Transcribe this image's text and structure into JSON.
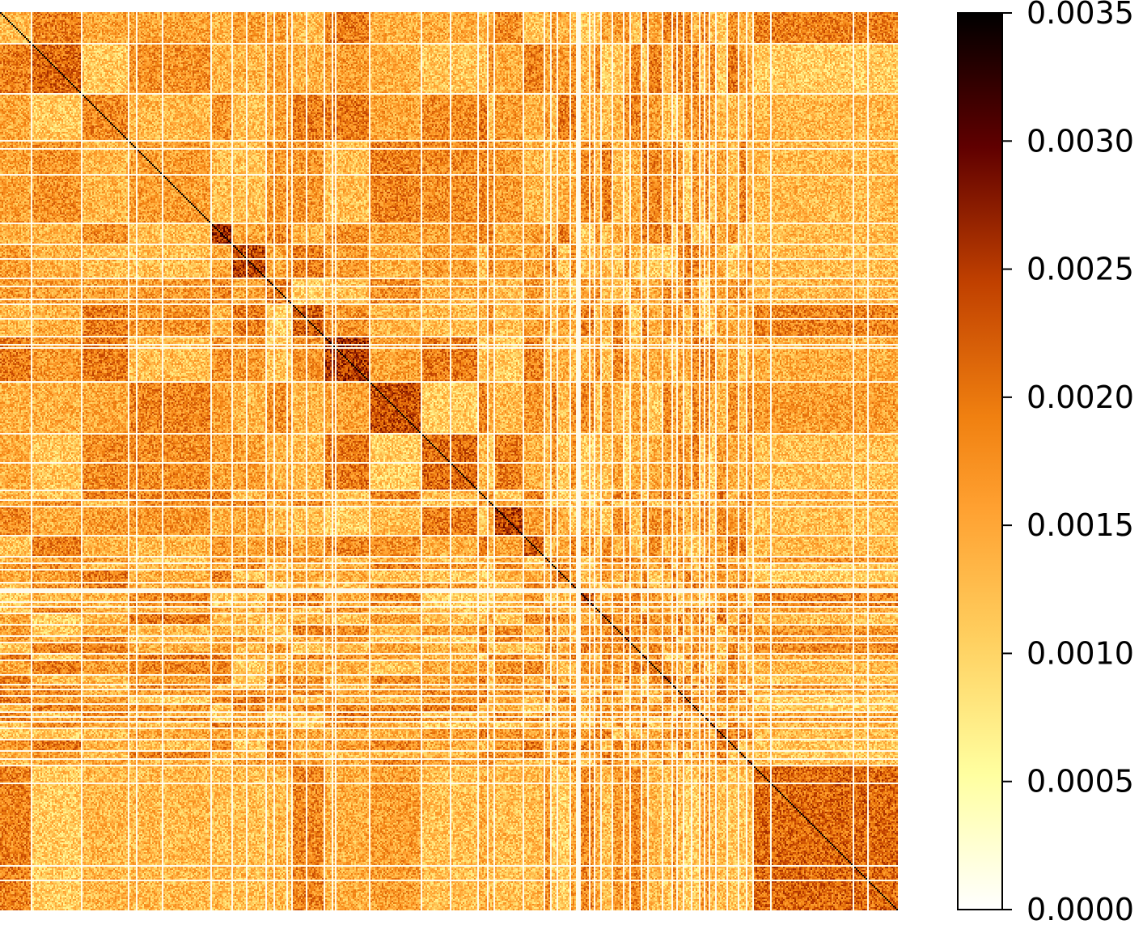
{
  "chart_data": {
    "type": "heatmap",
    "title": "",
    "xlabel": "",
    "ylabel": "",
    "grid": false,
    "colormap": "afmhot_r",
    "value_range": [
      0.0,
      0.0035
    ],
    "colorbar": {
      "placement": "right",
      "ticks": [
        0.0,
        0.0005,
        0.001,
        0.0015,
        0.002,
        0.0025,
        0.003,
        0.0035
      ],
      "tick_labels": [
        "0.0000",
        "0.0005",
        "0.0010",
        "0.0015",
        "0.0020",
        "0.0025",
        "0.0030",
        "0.0035"
      ]
    },
    "matrix_size": 555,
    "cluster_sizes": [
      19,
      31,
      29,
      51,
      13,
      21,
      16,
      20,
      28,
      32,
      35,
      6,
      4,
      18,
      13,
      4,
      4,
      8,
      4,
      11,
      4,
      7,
      7,
      4,
      7,
      4,
      9,
      6,
      3,
      4,
      5,
      5,
      3,
      3,
      4,
      7,
      7,
      5,
      4,
      11
    ],
    "block_mean_levels": [
      0.0013,
      0.0021,
      0.0018,
      0.0016,
      0.0026,
      0.0024,
      0.0019,
      0.0022,
      0.0025,
      0.0023,
      0.0021,
      0.0017,
      0.0019,
      0.0024,
      0.0022,
      0.0018,
      0.0016,
      0.0021,
      0.002,
      0.0023,
      0.0018,
      0.0022,
      0.0019,
      0.0024,
      0.0017,
      0.0021,
      0.002,
      0.0023,
      0.0018,
      0.0019,
      0.0022,
      0.002,
      0.0017,
      0.0021,
      0.0019,
      0.0023,
      0.002,
      0.0018,
      0.0022,
      0.0021
    ],
    "diagonal_value": 0.0035,
    "background_level": 0.0015
  }
}
